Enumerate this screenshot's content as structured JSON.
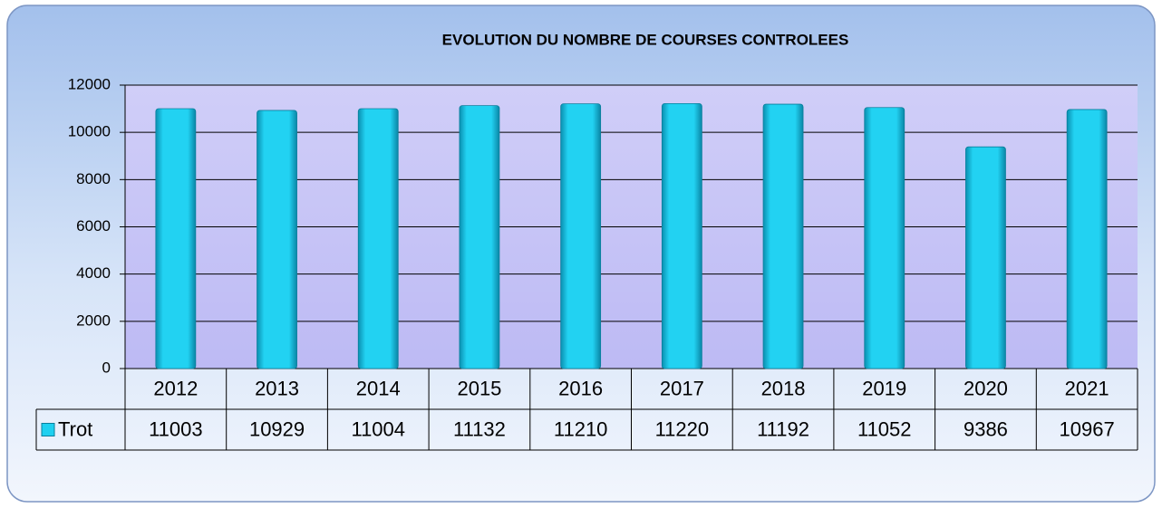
{
  "chart_data": {
    "type": "bar",
    "title": "EVOLUTION DU NOMBRE DE COURSES CONTROLEES",
    "categories": [
      "2012",
      "2013",
      "2014",
      "2015",
      "2016",
      "2017",
      "2018",
      "2019",
      "2020",
      "2021"
    ],
    "series": [
      {
        "name": "Trot",
        "color": "#1fd0f0",
        "values": [
          11003,
          10929,
          11004,
          11132,
          11210,
          11220,
          11192,
          11052,
          9386,
          10967
        ]
      }
    ],
    "ylim": [
      0,
      12000
    ],
    "yticks": [
      0,
      2000,
      4000,
      6000,
      8000,
      10000,
      12000
    ],
    "grid": true,
    "data_table": true
  }
}
